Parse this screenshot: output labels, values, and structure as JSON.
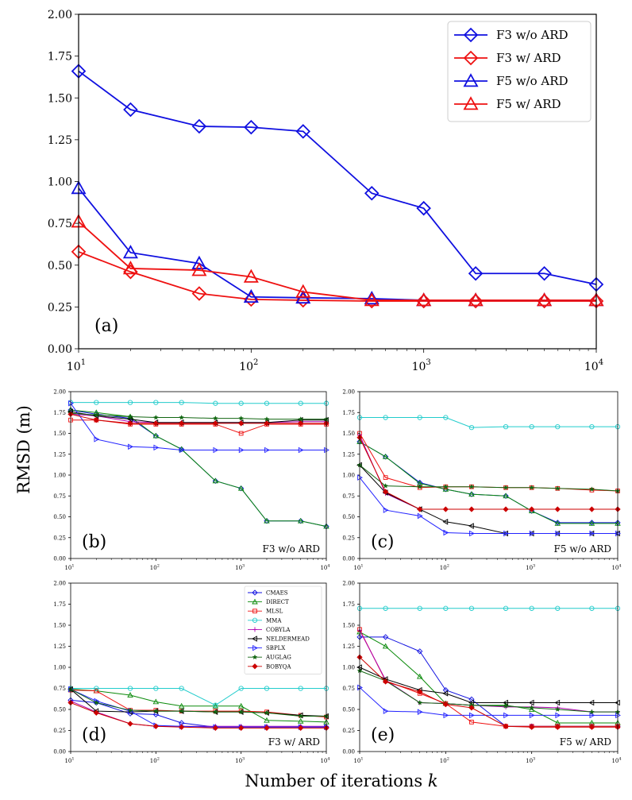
{
  "figure": {
    "ylabel": "RMSD (m)",
    "xlabel": "Number of iterations k",
    "xlabel_text": "Number of iterations ",
    "xlabel_var": "k"
  },
  "colors": {
    "blue": "#1010e0",
    "red": "#ee1111",
    "green": "#0a8a0a",
    "cyan": "#22cccc",
    "magenta": "#b000b0",
    "black": "#000000",
    "bluepx": "#2222ff",
    "darkgreen": "#116611",
    "darkred": "#cc0000"
  },
  "chart_data": [
    {
      "id": "a",
      "type": "line",
      "label": "(a)",
      "title": "",
      "xscale": "log",
      "xlim": [
        10,
        10000
      ],
      "ylim": [
        0,
        2.0
      ],
      "yticks": [
        "0.00",
        "0.25",
        "0.50",
        "0.75",
        "1.00",
        "1.25",
        "1.50",
        "1.75",
        "2.00"
      ],
      "xticks": [
        {
          "base": "10",
          "exp": "1"
        },
        {
          "base": "10",
          "exp": "2"
        },
        {
          "base": "10",
          "exp": "3"
        },
        {
          "base": "10",
          "exp": "4"
        }
      ],
      "legend_position": "top-right",
      "x": [
        10,
        20,
        50,
        100,
        200,
        500,
        1000,
        2000,
        5000,
        10000
      ],
      "series": [
        {
          "name": "F3 w/o ARD",
          "color": "blue",
          "marker": "diamond",
          "values": [
            1.66,
            1.43,
            1.33,
            1.325,
            1.3,
            0.93,
            0.84,
            0.45,
            0.45,
            0.385
          ]
        },
        {
          "name": "F3 w/ ARD",
          "color": "red",
          "marker": "diamond",
          "values": [
            0.58,
            0.46,
            0.33,
            0.295,
            0.29,
            0.285,
            0.285,
            0.285,
            0.285,
            0.285
          ]
        },
        {
          "name": "F5 w/o ARD",
          "color": "blue",
          "marker": "triangle",
          "values": [
            0.96,
            0.575,
            0.51,
            0.31,
            0.305,
            0.3,
            0.29,
            0.29,
            0.29,
            0.29
          ]
        },
        {
          "name": "F5 w/ ARD",
          "color": "red",
          "marker": "triangle",
          "values": [
            0.76,
            0.48,
            0.47,
            0.43,
            0.34,
            0.29,
            0.29,
            0.29,
            0.29,
            0.29
          ]
        }
      ]
    },
    {
      "id": "b",
      "type": "line",
      "label": "(b)",
      "title": "F3 w/o ARD",
      "xscale": "log",
      "xlim": [
        10,
        10000
      ],
      "ylim": [
        0,
        2.0
      ],
      "yticks": [
        "0.00",
        "0.25",
        "0.50",
        "0.75",
        "1.00",
        "1.25",
        "1.50",
        "1.75",
        "2.00"
      ],
      "xticks": [
        {
          "base": "10",
          "exp": "1"
        },
        {
          "base": "10",
          "exp": "2"
        },
        {
          "base": "10",
          "exp": "3"
        },
        {
          "base": "10",
          "exp": "4"
        }
      ],
      "x": [
        10,
        20,
        50,
        100,
        200,
        500,
        1000,
        2000,
        5000,
        10000
      ],
      "series": [
        {
          "name": "CMAES",
          "color": "blue",
          "marker": "diamond",
          "values": [
            1.78,
            1.73,
            1.68,
            1.47,
            1.31,
            0.93,
            0.84,
            0.45,
            0.45,
            0.385
          ]
        },
        {
          "name": "DIRECT",
          "color": "green",
          "marker": "triangle",
          "values": [
            1.78,
            1.75,
            1.7,
            1.47,
            1.31,
            0.93,
            0.84,
            0.45,
            0.45,
            0.385
          ]
        },
        {
          "name": "MLSL",
          "color": "red",
          "marker": "square",
          "values": [
            1.66,
            1.66,
            1.61,
            1.61,
            1.61,
            1.61,
            1.5,
            1.61,
            1.61,
            1.61
          ]
        },
        {
          "name": "MMA",
          "color": "cyan",
          "marker": "circle",
          "values": [
            1.87,
            1.87,
            1.87,
            1.87,
            1.87,
            1.86,
            1.86,
            1.86,
            1.86,
            1.86
          ]
        },
        {
          "name": "COBYLA",
          "color": "magenta",
          "marker": "plus",
          "values": [
            1.73,
            1.71,
            1.64,
            1.63,
            1.63,
            1.63,
            1.63,
            1.63,
            1.64,
            1.64
          ]
        },
        {
          "name": "NELDERMEAD",
          "color": "black",
          "marker": "tri-left",
          "values": [
            1.76,
            1.71,
            1.67,
            1.63,
            1.63,
            1.63,
            1.63,
            1.63,
            1.66,
            1.66
          ]
        },
        {
          "name": "SBPLX",
          "color": "bluepx",
          "marker": "tri-right",
          "values": [
            1.86,
            1.43,
            1.34,
            1.33,
            1.3,
            1.3,
            1.3,
            1.3,
            1.3,
            1.3
          ]
        },
        {
          "name": "AUGLAG",
          "color": "darkgreen",
          "marker": "star",
          "values": [
            1.74,
            1.72,
            1.7,
            1.69,
            1.69,
            1.68,
            1.68,
            1.67,
            1.67,
            1.67
          ]
        },
        {
          "name": "BOBYQA",
          "color": "darkred",
          "marker": "dot-diamond",
          "values": [
            1.73,
            1.66,
            1.62,
            1.62,
            1.62,
            1.62,
            1.62,
            1.62,
            1.62,
            1.62
          ]
        }
      ]
    },
    {
      "id": "c",
      "type": "line",
      "label": "(c)",
      "title": "F5 w/o ARD",
      "xscale": "log",
      "xlim": [
        10,
        10000
      ],
      "ylim": [
        0,
        2.0
      ],
      "yticks": [
        "0.00",
        "0.25",
        "0.50",
        "0.75",
        "1.00",
        "1.25",
        "1.50",
        "1.75",
        "2.00"
      ],
      "xticks": [
        {
          "base": "10",
          "exp": "1"
        },
        {
          "base": "10",
          "exp": "2"
        },
        {
          "base": "10",
          "exp": "3"
        },
        {
          "base": "10",
          "exp": "4"
        }
      ],
      "x": [
        10,
        20,
        50,
        100,
        200,
        500,
        1000,
        2000,
        5000,
        10000
      ],
      "series": [
        {
          "name": "CMAES",
          "color": "blue",
          "marker": "diamond",
          "values": [
            1.4,
            1.22,
            0.91,
            0.83,
            0.77,
            0.75,
            0.57,
            0.43,
            0.43,
            0.43
          ]
        },
        {
          "name": "DIRECT",
          "color": "green",
          "marker": "triangle",
          "values": [
            1.4,
            1.22,
            0.9,
            0.83,
            0.77,
            0.75,
            0.57,
            0.42,
            0.42,
            0.42
          ]
        },
        {
          "name": "MLSL",
          "color": "red",
          "marker": "square",
          "values": [
            1.5,
            0.97,
            0.85,
            0.86,
            0.86,
            0.85,
            0.85,
            0.84,
            0.82,
            0.81
          ]
        },
        {
          "name": "MMA",
          "color": "cyan",
          "marker": "circle",
          "values": [
            1.69,
            1.69,
            1.69,
            1.69,
            1.57,
            1.58,
            1.58,
            1.58,
            1.58,
            1.58
          ]
        },
        {
          "name": "COBYLA",
          "color": "magenta",
          "marker": "plus",
          "values": [
            1.48,
            0.78,
            0.59,
            0.59,
            0.59,
            0.59,
            0.59,
            0.59,
            0.59,
            0.59
          ]
        },
        {
          "name": "NELDERMEAD",
          "color": "black",
          "marker": "tri-left",
          "values": [
            1.12,
            0.79,
            0.59,
            0.44,
            0.39,
            0.3,
            0.3,
            0.3,
            0.3,
            0.3
          ]
        },
        {
          "name": "SBPLX",
          "color": "bluepx",
          "marker": "tri-right",
          "values": [
            0.97,
            0.58,
            0.51,
            0.31,
            0.3,
            0.3,
            0.3,
            0.3,
            0.3,
            0.3
          ]
        },
        {
          "name": "AUGLAG",
          "color": "darkgreen",
          "marker": "star",
          "values": [
            1.12,
            0.87,
            0.86,
            0.86,
            0.86,
            0.85,
            0.85,
            0.84,
            0.83,
            0.81
          ]
        },
        {
          "name": "BOBYQA",
          "color": "darkred",
          "marker": "dot-diamond",
          "values": [
            1.45,
            0.8,
            0.59,
            0.59,
            0.59,
            0.59,
            0.59,
            0.59,
            0.59,
            0.59
          ]
        }
      ]
    },
    {
      "id": "d",
      "type": "line",
      "label": "(d)",
      "title": "F3 w/ ARD",
      "xscale": "log",
      "xlim": [
        10,
        10000
      ],
      "ylim": [
        0,
        2.0
      ],
      "yticks": [
        "0.00",
        "0.25",
        "0.50",
        "0.75",
        "1.00",
        "1.25",
        "1.50",
        "1.75",
        "2.00"
      ],
      "xticks": [
        {
          "base": "10",
          "exp": "1"
        },
        {
          "base": "10",
          "exp": "2"
        },
        {
          "base": "10",
          "exp": "3"
        },
        {
          "base": "10",
          "exp": "4"
        }
      ],
      "legend_position": "top-right",
      "x": [
        10,
        20,
        50,
        100,
        200,
        500,
        1000,
        2000,
        5000,
        10000
      ],
      "series": [
        {
          "name": "CMAES",
          "color": "blue",
          "marker": "diamond",
          "values": [
            0.61,
            0.58,
            0.45,
            0.44,
            0.34,
            0.29,
            0.29,
            0.29,
            0.29,
            0.29
          ]
        },
        {
          "name": "DIRECT",
          "color": "green",
          "marker": "triangle",
          "values": [
            0.74,
            0.72,
            0.67,
            0.59,
            0.54,
            0.54,
            0.54,
            0.37,
            0.36,
            0.35
          ]
        },
        {
          "name": "MLSL",
          "color": "red",
          "marker": "square",
          "values": [
            0.73,
            0.72,
            0.49,
            0.49,
            0.48,
            0.48,
            0.48,
            0.47,
            0.43,
            0.41
          ]
        },
        {
          "name": "MMA",
          "color": "cyan",
          "marker": "circle",
          "values": [
            0.75,
            0.75,
            0.75,
            0.75,
            0.75,
            0.55,
            0.75,
            0.75,
            0.75,
            0.75
          ]
        },
        {
          "name": "COBYLA",
          "color": "magenta",
          "marker": "plus",
          "values": [
            0.6,
            0.47,
            0.33,
            0.3,
            0.3,
            0.3,
            0.3,
            0.3,
            0.3,
            0.3
          ]
        },
        {
          "name": "NELDERMEAD",
          "color": "black",
          "marker": "tri-left",
          "values": [
            0.74,
            0.48,
            0.47,
            0.48,
            0.48,
            0.47,
            0.47,
            0.46,
            0.43,
            0.42
          ]
        },
        {
          "name": "SBPLX",
          "color": "bluepx",
          "marker": "tri-right",
          "values": [
            0.74,
            0.6,
            0.48,
            0.31,
            0.3,
            0.29,
            0.29,
            0.29,
            0.29,
            0.29
          ]
        },
        {
          "name": "AUGLAG",
          "color": "darkgreen",
          "marker": "star",
          "values": [
            0.74,
            0.58,
            0.49,
            0.48,
            0.48,
            0.47,
            0.47,
            0.46,
            0.42,
            0.42
          ]
        },
        {
          "name": "BOBYQA",
          "color": "darkred",
          "marker": "dot-diamond",
          "values": [
            0.58,
            0.46,
            0.33,
            0.3,
            0.29,
            0.28,
            0.28,
            0.28,
            0.28,
            0.28
          ]
        }
      ]
    },
    {
      "id": "e",
      "type": "line",
      "label": "(e)",
      "title": "F5 w/ ARD",
      "xscale": "log",
      "xlim": [
        10,
        10000
      ],
      "ylim": [
        0,
        2.0
      ],
      "yticks": [
        "0.00",
        "0.25",
        "0.50",
        "0.75",
        "1.00",
        "1.25",
        "1.50",
        "1.75",
        "2.00"
      ],
      "xticks": [
        {
          "base": "10",
          "exp": "1"
        },
        {
          "base": "10",
          "exp": "2"
        },
        {
          "base": "10",
          "exp": "3"
        },
        {
          "base": "10",
          "exp": "4"
        }
      ],
      "x": [
        10,
        20,
        50,
        100,
        200,
        500,
        1000,
        2000,
        5000,
        10000
      ],
      "series": [
        {
          "name": "CMAES",
          "color": "blue",
          "marker": "diamond",
          "values": [
            1.36,
            1.36,
            1.19,
            0.73,
            0.62,
            0.3,
            0.3,
            0.3,
            0.3,
            0.3
          ]
        },
        {
          "name": "DIRECT",
          "color": "green",
          "marker": "triangle",
          "values": [
            1.42,
            1.25,
            0.89,
            0.57,
            0.55,
            0.55,
            0.5,
            0.34,
            0.34,
            0.34
          ]
        },
        {
          "name": "MLSL",
          "color": "red",
          "marker": "square",
          "values": [
            1.45,
            0.84,
            0.69,
            0.57,
            0.35,
            0.3,
            0.3,
            0.3,
            0.3,
            0.3
          ]
        },
        {
          "name": "MMA",
          "color": "cyan",
          "marker": "circle",
          "values": [
            1.7,
            1.7,
            1.7,
            1.7,
            1.7,
            1.7,
            1.7,
            1.7,
            1.7,
            1.7
          ]
        },
        {
          "name": "COBYLA",
          "color": "magenta",
          "marker": "plus",
          "values": [
            1.44,
            0.85,
            0.58,
            0.57,
            0.55,
            0.53,
            0.53,
            0.52,
            0.47,
            0.47
          ]
        },
        {
          "name": "NELDERMEAD",
          "color": "black",
          "marker": "tri-left",
          "values": [
            1.0,
            0.86,
            0.73,
            0.69,
            0.58,
            0.58,
            0.58,
            0.58,
            0.58,
            0.58
          ]
        },
        {
          "name": "SBPLX",
          "color": "bluepx",
          "marker": "tri-right",
          "values": [
            0.76,
            0.48,
            0.47,
            0.43,
            0.43,
            0.43,
            0.43,
            0.43,
            0.43,
            0.43
          ]
        },
        {
          "name": "AUGLAG",
          "color": "darkgreen",
          "marker": "star",
          "values": [
            0.96,
            0.84,
            0.58,
            0.57,
            0.55,
            0.54,
            0.52,
            0.5,
            0.47,
            0.47
          ]
        },
        {
          "name": "BOBYQA",
          "color": "darkred",
          "marker": "dot-diamond",
          "values": [
            1.12,
            0.83,
            0.71,
            0.56,
            0.52,
            0.3,
            0.29,
            0.29,
            0.29,
            0.29
          ]
        }
      ]
    }
  ]
}
